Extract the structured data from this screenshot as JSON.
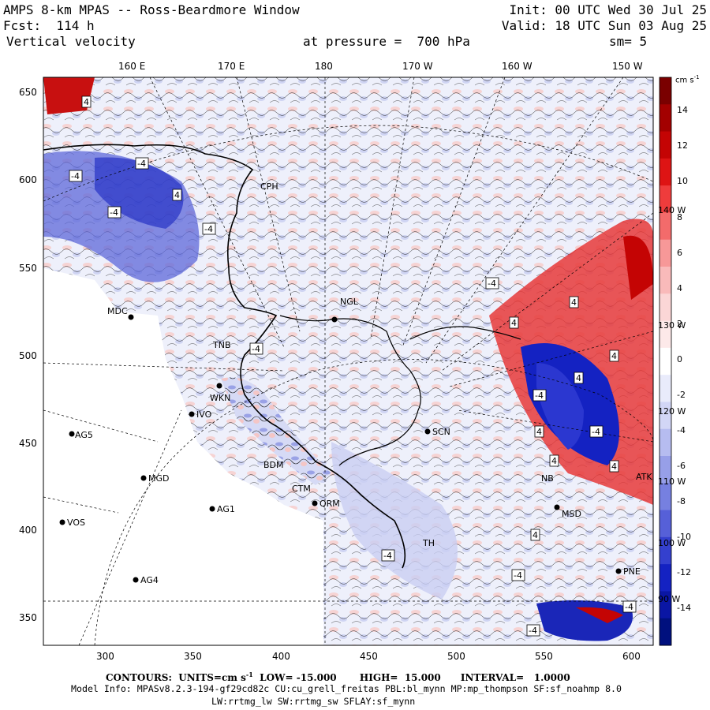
{
  "header": {
    "title": "AMPS 8-km MPAS -- Ross-Beardmore Window",
    "fcst": "Fcst:  114 h",
    "field": "Vertical velocity",
    "pressure": "at pressure =  700 hPa",
    "init": "Init: 00 UTC Wed 30 Jul 25",
    "valid": "Valid: 18 UTC Sun 03 Aug 25",
    "smooth": "sm= 5"
  },
  "top_axis": [
    "160 E",
    "170 E",
    "180",
    "170 W",
    "160 W",
    "150 W"
  ],
  "bottom_axis": [
    "300",
    "350",
    "400",
    "450",
    "500",
    "550",
    "600"
  ],
  "left_axis": [
    "650",
    "600",
    "550",
    "500",
    "450",
    "400",
    "350"
  ],
  "lon_labels_right": [
    "140 W",
    "130 W",
    "120 W",
    "110 W",
    "100 W",
    "90 W"
  ],
  "colorbar": {
    "unit": "cm s",
    "unit_exp": "-1",
    "labels": [
      "14",
      "12",
      "10",
      "8",
      "6",
      "4",
      "2",
      "0",
      "-2",
      "-4",
      "-6",
      "-8",
      "-10",
      "-12",
      "-14"
    ],
    "colors": [
      "#7a0000",
      "#a30000",
      "#c40404",
      "#de1414",
      "#ef3c3c",
      "#f36b6b",
      "#f79898",
      "#f9baba",
      "#fbd6d6",
      "#fde9e9",
      "#ffffff",
      "#e9ebfb",
      "#d2d6f6",
      "#b6bcf0",
      "#979fe8",
      "#7680e0",
      "#5660d8",
      "#3440ce",
      "#1422c2",
      "#0a16a4",
      "#00107e"
    ]
  },
  "stations": [
    "MDC",
    "TNB",
    "WKN",
    "IVO",
    "AG5",
    "MGD",
    "AG1",
    "VOS",
    "AG4",
    "BDM",
    "CTM",
    "QRM",
    "CPH",
    "NGL",
    "SCN",
    "MSD",
    "PNE",
    "NB",
    "TH",
    "ATK"
  ],
  "contour_labels": [
    "4",
    "-4"
  ],
  "footer": {
    "contours_prefix": "CONTOURS:  UNITS=cm s",
    "contours_exp": "-1",
    "contours_rest": "  LOW= -15.000       HIGH=  15.000      INTERVAL=   1.0000",
    "model_info": "Model Info: MPASv8.2.3-194-gf29cd82c CU:cu_grell_freitas PBL:bl_mynn MP:mp_thompson SF:sf_noahmp 8.0",
    "model_info2": "LW:rrtmg_lw SW:rrtmg_sw SFLAY:sf_mynn"
  }
}
